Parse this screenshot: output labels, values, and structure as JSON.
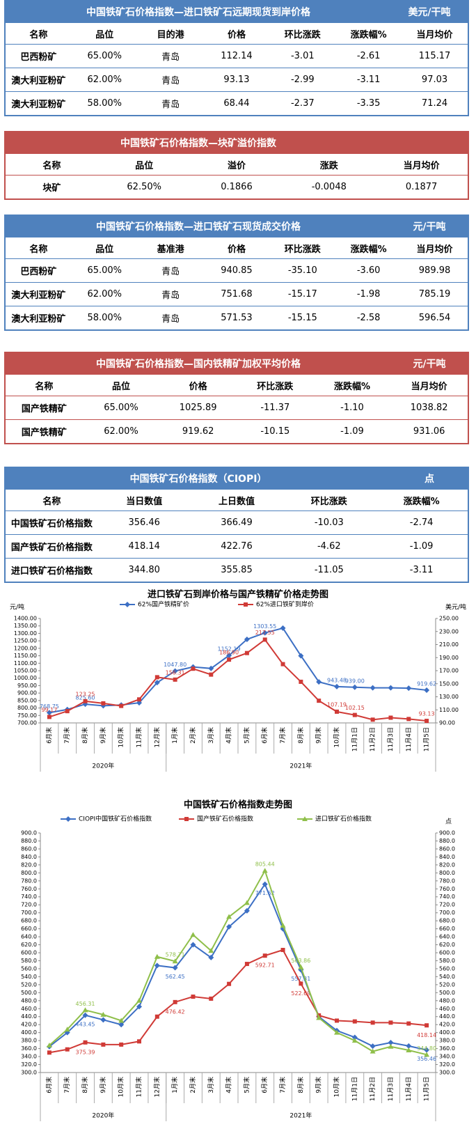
{
  "tables": [
    {
      "title": "中国铁矿石价格指数—进口铁矿石远期现货到岸价格",
      "unit": "美元/干吨",
      "color": "#4f81bd",
      "header": [
        "名称",
        "品位",
        "目的港",
        "价格",
        "环比涨跌",
        "涨跌幅%",
        "当月均价"
      ],
      "rows": [
        [
          "巴西粉矿",
          "65.00%",
          "青岛",
          "112.14",
          "-3.01",
          "-2.61",
          "115.17"
        ],
        [
          "澳大利亚粉矿",
          "62.00%",
          "青岛",
          "93.13",
          "-2.99",
          "-3.11",
          "97.03"
        ],
        [
          "澳大利亚粉矿",
          "58.00%",
          "青岛",
          "68.44",
          "-2.37",
          "-3.35",
          "71.24"
        ]
      ]
    },
    {
      "title": "中国铁矿石价格指数—块矿溢价指数",
      "color": "#c0504d",
      "header": [
        "名称",
        "品位",
        "溢价",
        "涨跌",
        "当月均价"
      ],
      "rows": [
        [
          "块矿",
          "62.50%",
          "0.1866",
          "-0.0048",
          "0.1877"
        ]
      ]
    },
    {
      "title": "中国铁矿石价格指数—进口铁矿石现货成交价格",
      "unit": "元/干吨",
      "color": "#4f81bd",
      "header": [
        "名称",
        "品位",
        "基准港",
        "价格",
        "环比涨跌",
        "涨跌幅%",
        "当月均价"
      ],
      "rows": [
        [
          "巴西粉矿",
          "65.00%",
          "青岛",
          "940.85",
          "-35.10",
          "-3.60",
          "989.98"
        ],
        [
          "澳大利亚粉矿",
          "62.00%",
          "青岛",
          "751.68",
          "-15.17",
          "-1.98",
          "785.19"
        ],
        [
          "澳大利亚粉矿",
          "58.00%",
          "青岛",
          "571.53",
          "-15.15",
          "-2.58",
          "596.54"
        ]
      ]
    },
    {
      "title": "中国铁矿石价格指数—国内铁精矿加权平均价格",
      "unit": "元/干吨",
      "color": "#c0504d",
      "header": [
        "名称",
        "品位",
        "价格",
        "环比涨跌",
        "涨跌幅%",
        "当月均价"
      ],
      "rows": [
        [
          "国产铁精矿",
          "65.00%",
          "1025.89",
          "-11.37",
          "-1.10",
          "1038.82"
        ],
        [
          "国产铁精矿",
          "62.00%",
          "919.62",
          "-10.15",
          "-1.09",
          "931.06"
        ]
      ]
    },
    {
      "title": "中国铁矿石价格指数（CIOPI）",
      "unit": "点",
      "color": "#4f81bd",
      "header": [
        "名称",
        "当日数值",
        "上日数值",
        "环比涨跌",
        "涨跌幅%"
      ],
      "rows": [
        [
          "中国铁矿石价格指数",
          "356.46",
          "366.49",
          "-10.03",
          "-2.74"
        ],
        [
          "国产铁矿石价格指数",
          "418.14",
          "422.76",
          "-4.62",
          "-1.09"
        ],
        [
          "进口铁矿石价格指数",
          "344.80",
          "355.85",
          "-11.05",
          "-3.11"
        ]
      ]
    }
  ],
  "chart_data": [
    {
      "type": "line",
      "title": "进口铁矿石到岸价格与国产铁精矿价格走势图",
      "ylabel": "元/吨",
      "y2label": "美元/吨",
      "grid": false,
      "categories": [
        "6月末",
        "7月末",
        "8月末",
        "9月末",
        "10月末",
        "11月末",
        "12月末",
        "1月末",
        "2月末",
        "3月末",
        "4月末",
        "5月末",
        "6月末",
        "7月末",
        "8月末",
        "9月末",
        "10月末",
        "11月1日",
        "11月2日",
        "11月3日",
        "11月4日",
        "11月5日"
      ],
      "x_groups": [
        "2020年",
        "2021年"
      ],
      "ylim": [
        700,
        1400
      ],
      "yticks": [
        {
          "value": 700,
          "label": "700.00"
        },
        {
          "value": 750,
          "label": "750.00"
        },
        {
          "value": 800,
          "label": "800.00"
        },
        {
          "value": 850,
          "label": "850.00"
        },
        {
          "value": 900,
          "label": "900.00"
        },
        {
          "value": 950,
          "label": "950.00"
        },
        {
          "value": 1000,
          "label": "1000.00"
        },
        {
          "value": 1050,
          "label": "1050.00"
        },
        {
          "value": 1100,
          "label": "1100.00"
        },
        {
          "value": 1150,
          "label": "1150.00"
        },
        {
          "value": 1200,
          "label": "1200.00"
        },
        {
          "value": 1250,
          "label": "1250.00"
        },
        {
          "value": 1300,
          "label": "1300.00"
        },
        {
          "value": 1350,
          "label": "1350.00"
        },
        {
          "value": 1400,
          "label": "1400.00"
        }
      ],
      "y2lim": [
        90,
        250
      ],
      "y2ticks": [
        {
          "value": 90,
          "label": "90.00"
        },
        {
          "value": 110,
          "label": "110.00"
        },
        {
          "value": 130,
          "label": "130.00"
        },
        {
          "value": 150,
          "label": "150.00"
        },
        {
          "value": 170,
          "label": "170.00"
        },
        {
          "value": 190,
          "label": "190.00"
        },
        {
          "value": 210,
          "label": "210.00"
        },
        {
          "value": 230,
          "label": "230.00"
        },
        {
          "value": 250,
          "label": "250.00"
        }
      ],
      "series": [
        {
          "name": "62%国产铁精矿价",
          "color": "#3c6fc4",
          "marker": "diamond",
          "values": [
            768.75,
            790,
            825.6,
            815,
            820,
            835,
            970,
            1047.8,
            1075,
            1065,
            1152.19,
            1260,
            1303.55,
            1335,
            1150,
            975,
            943.48,
            939,
            935,
            935,
            933,
            919.62
          ],
          "value_labels": [
            "768.75",
            null,
            "825.60",
            null,
            null,
            null,
            null,
            "1047.80",
            null,
            null,
            "1152.19",
            null,
            "1303.55",
            null,
            null,
            null,
            "943.48",
            "939.00",
            null,
            null,
            null,
            "919.62"
          ]
        },
        {
          "name": "62%进口铁矿到岸价",
          "color": "#d03a36",
          "marker": "square",
          "axis": "y2",
          "values": [
            99.17,
            108,
            123.25,
            120,
            116,
            126,
            160,
            156.31,
            173,
            164,
            186.9,
            197,
            217.55,
            180,
            153,
            124,
            107.19,
            102.15,
            95,
            98,
            96,
            93.13
          ],
          "value_labels": [
            "99.17",
            null,
            "123.25",
            null,
            null,
            null,
            null,
            "156.31",
            null,
            null,
            "186.90",
            null,
            "217.55",
            null,
            null,
            null,
            "107.19",
            "102.15",
            null,
            null,
            null,
            "93.13"
          ]
        }
      ]
    },
    {
      "type": "line",
      "title": "中国铁矿石价格指数走势图",
      "y2label": "点",
      "grid": false,
      "categories": [
        "6月末",
        "7月末",
        "8月末",
        "9月末",
        "10月末",
        "11月末",
        "12月末",
        "1月末",
        "2月末",
        "3月末",
        "4月末",
        "5月末",
        "6月末",
        "7月末",
        "8月末",
        "9月末",
        "10月末",
        "11月1日",
        "11月2日",
        "11月3日",
        "11月4日",
        "11月5日"
      ],
      "x_groups": [
        "2020年",
        "2021年"
      ],
      "ylim": [
        300,
        900
      ],
      "yticks": [
        {
          "value": 300,
          "label": "300.0"
        },
        {
          "value": 320,
          "label": "320.0"
        },
        {
          "value": 340,
          "label": "340.0"
        },
        {
          "value": 360,
          "label": "360.0"
        },
        {
          "value": 380,
          "label": "380.0"
        },
        {
          "value": 400,
          "label": "400.0"
        },
        {
          "value": 420,
          "label": "420.0"
        },
        {
          "value": 440,
          "label": "440.0"
        },
        {
          "value": 460,
          "label": "460.0"
        },
        {
          "value": 480,
          "label": "480.0"
        },
        {
          "value": 500,
          "label": "500.0"
        },
        {
          "value": 520,
          "label": "520.0"
        },
        {
          "value": 540,
          "label": "540.0"
        },
        {
          "value": 560,
          "label": "560.0"
        },
        {
          "value": 580,
          "label": "580.0"
        },
        {
          "value": 600,
          "label": "600.0"
        },
        {
          "value": 620,
          "label": "620.0"
        },
        {
          "value": 640,
          "label": "640.0"
        },
        {
          "value": 660,
          "label": "660.0"
        },
        {
          "value": 680,
          "label": "680.0"
        },
        {
          "value": 700,
          "label": "700.0"
        },
        {
          "value": 720,
          "label": "720.0"
        },
        {
          "value": 740,
          "label": "740.0"
        },
        {
          "value": 760,
          "label": "760.0"
        },
        {
          "value": 780,
          "label": "780.0"
        },
        {
          "value": 800,
          "label": "800.0"
        },
        {
          "value": 820,
          "label": "820.0"
        },
        {
          "value": 840,
          "label": "840.0"
        },
        {
          "value": 860,
          "label": "860.0"
        },
        {
          "value": 880,
          "label": "880.0"
        },
        {
          "value": 900,
          "label": "900.0"
        }
      ],
      "y2lim": [
        300,
        900
      ],
      "y2ticks": [
        {
          "value": 300,
          "label": "300.0"
        },
        {
          "value": 320,
          "label": "320.0"
        },
        {
          "value": 340,
          "label": "340.0"
        },
        {
          "value": 360,
          "label": "360.0"
        },
        {
          "value": 380,
          "label": "380.0"
        },
        {
          "value": 400,
          "label": "400.0"
        },
        {
          "value": 420,
          "label": "420.0"
        },
        {
          "value": 440,
          "label": "440.0"
        },
        {
          "value": 460,
          "label": "460.0"
        },
        {
          "value": 480,
          "label": "480.0"
        },
        {
          "value": 500,
          "label": "500.0"
        },
        {
          "value": 520,
          "label": "520.0"
        },
        {
          "value": 540,
          "label": "540.0"
        },
        {
          "value": 560,
          "label": "560.0"
        },
        {
          "value": 580,
          "label": "580.0"
        },
        {
          "value": 600,
          "label": "600.0"
        },
        {
          "value": 620,
          "label": "620.0"
        },
        {
          "value": 640,
          "label": "640.0"
        },
        {
          "value": 660,
          "label": "660.0"
        },
        {
          "value": 680,
          "label": "680.0"
        },
        {
          "value": 700,
          "label": "700.0"
        },
        {
          "value": 720,
          "label": "720.0"
        },
        {
          "value": 740,
          "label": "740.0"
        },
        {
          "value": 760,
          "label": "760.0"
        },
        {
          "value": 780,
          "label": "780.0"
        },
        {
          "value": 800,
          "label": "800.0"
        },
        {
          "value": 820,
          "label": "820.0"
        },
        {
          "value": 840,
          "label": "840.0"
        },
        {
          "value": 860,
          "label": "860.0"
        },
        {
          "value": 880,
          "label": "880.0"
        },
        {
          "value": 900,
          "label": "900.0"
        }
      ],
      "series": [
        {
          "name": "CIOPI中国铁矿石价格指数",
          "color": "#3c6fc4",
          "marker": "diamond",
          "values": [
            365,
            400,
            443.45,
            432,
            420,
            465,
            568,
            562.45,
            620,
            588,
            665,
            705,
            771.62,
            660,
            557.31,
            440,
            405,
            388,
            366,
            375,
            366.49,
            356.46
          ],
          "value_labels": [
            null,
            null,
            "443.45",
            null,
            null,
            null,
            null,
            "562.45",
            null,
            null,
            null,
            null,
            "771.62",
            null,
            "557.31",
            null,
            null,
            null,
            null,
            null,
            null,
            "356.46"
          ]
        },
        {
          "name": "国产铁矿石价格指数",
          "color": "#d03a36",
          "marker": "square",
          "values": [
            350,
            358,
            375.39,
            370,
            370,
            378,
            440,
            476.42,
            490,
            485,
            522,
            572,
            592.71,
            607,
            522.69,
            443,
            430,
            428,
            425,
            425,
            422.76,
            418.14
          ],
          "value_labels": [
            null,
            null,
            "375.39",
            null,
            null,
            null,
            null,
            "476.42",
            null,
            null,
            null,
            null,
            "592.71",
            null,
            "522.69",
            null,
            null,
            null,
            null,
            null,
            null,
            "418.14"
          ]
        },
        {
          "name": "进口铁矿石价格指数",
          "color": "#8fbf4a",
          "marker": "triangle",
          "values": [
            368,
            408,
            456.31,
            445,
            430,
            480,
            590,
            578.71,
            645,
            605,
            690,
            725,
            805.44,
            668,
            563.86,
            437,
            400,
            380,
            353,
            365,
            355.85,
            344.8
          ],
          "value_labels": [
            null,
            null,
            "456.31",
            null,
            null,
            null,
            null,
            "578.71",
            null,
            null,
            null,
            null,
            "805.44",
            null,
            "563.86",
            null,
            null,
            null,
            null,
            null,
            null,
            "344.80"
          ]
        }
      ]
    }
  ]
}
